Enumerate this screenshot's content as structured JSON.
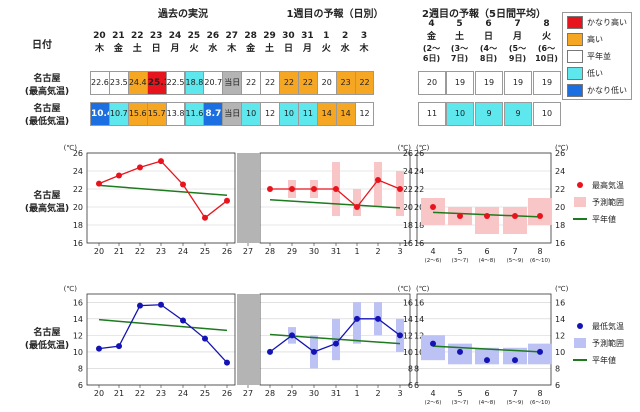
{
  "table": {
    "section_past": "過去の実況",
    "section_week1": "1週目の予報（日別）",
    "section_week2": "2週目の予報（5日間平均）",
    "date_label": "日付",
    "days": [
      {
        "d": "20",
        "w": "木"
      },
      {
        "d": "21",
        "w": "金"
      },
      {
        "d": "22",
        "w": "土"
      },
      {
        "d": "23",
        "w": "日"
      },
      {
        "d": "24",
        "w": "月"
      },
      {
        "d": "25",
        "w": "火"
      },
      {
        "d": "26",
        "w": "水"
      },
      {
        "d": "27",
        "w": "木"
      },
      {
        "d": "28",
        "w": "金"
      },
      {
        "d": "29",
        "w": "土"
      },
      {
        "d": "30",
        "w": "日"
      },
      {
        "d": "31",
        "w": "月"
      },
      {
        "d": "1",
        "w": "火"
      },
      {
        "d": "2",
        "w": "水"
      },
      {
        "d": "3",
        "w": "木"
      }
    ],
    "weeks": [
      {
        "d": "4",
        "w": "金",
        "r1": "(2〜",
        "r2": "6日)"
      },
      {
        "d": "5",
        "w": "土",
        "r1": "(3〜",
        "r2": "7日)"
      },
      {
        "d": "6",
        "w": "日",
        "r1": "(4〜",
        "r2": "8日)"
      },
      {
        "d": "7",
        "w": "月",
        "r1": "(5〜",
        "r2": "9日)"
      },
      {
        "d": "8",
        "w": "火",
        "r1": "(6〜",
        "r2": "10日)"
      }
    ],
    "row_high": {
      "line1": "名古屋",
      "line2": "(最高気温)"
    },
    "row_low": {
      "line1": "名古屋",
      "line2": "(最低気温)"
    },
    "high_cells": [
      {
        "v": "22.6",
        "c": "#ffffff",
        "b": false
      },
      {
        "v": "23.5",
        "c": "#ffffff",
        "b": false
      },
      {
        "v": "24.4",
        "c": "#f5a623",
        "b": false
      },
      {
        "v": "25.1",
        "c": "#e8141d",
        "b": true
      },
      {
        "v": "22.5",
        "c": "#ffffff",
        "b": false
      },
      {
        "v": "18.8",
        "c": "#5ee8ee",
        "b": false
      },
      {
        "v": "20.7",
        "c": "#ffffff",
        "b": false
      },
      {
        "v": "当日",
        "c": "#b4b4b4",
        "b": false
      },
      {
        "v": "22",
        "c": "#ffffff",
        "b": false
      },
      {
        "v": "22",
        "c": "#ffffff",
        "b": false
      },
      {
        "v": "22",
        "c": "#f5a623",
        "b": false
      },
      {
        "v": "22",
        "c": "#f5a623",
        "b": false
      },
      {
        "v": "20",
        "c": "#ffffff",
        "b": false
      },
      {
        "v": "23",
        "c": "#f5a623",
        "b": false
      },
      {
        "v": "22",
        "c": "#f5a623",
        "b": false
      }
    ],
    "low_cells": [
      {
        "v": "10.4",
        "c": "#1b6fe0",
        "b": true
      },
      {
        "v": "10.7",
        "c": "#5ee8ee",
        "b": false
      },
      {
        "v": "15.6",
        "c": "#f5a623",
        "b": false
      },
      {
        "v": "15.7",
        "c": "#f5a623",
        "b": false
      },
      {
        "v": "13.8",
        "c": "#ffffff",
        "b": false
      },
      {
        "v": "11.6",
        "c": "#5ee8ee",
        "b": false
      },
      {
        "v": "8.7",
        "c": "#1b6fe0",
        "b": true
      },
      {
        "v": "当日",
        "c": "#b4b4b4",
        "b": false
      },
      {
        "v": "10",
        "c": "#5ee8ee",
        "b": false
      },
      {
        "v": "12",
        "c": "#ffffff",
        "b": false
      },
      {
        "v": "10",
        "c": "#5ee8ee",
        "b": false
      },
      {
        "v": "11",
        "c": "#5ee8ee",
        "b": false
      },
      {
        "v": "14",
        "c": "#f5a623",
        "b": false
      },
      {
        "v": "14",
        "c": "#f5a623",
        "b": false
      },
      {
        "v": "12",
        "c": "#ffffff",
        "b": false
      }
    ],
    "high_week2": [
      {
        "v": "20",
        "c": "#ffffff"
      },
      {
        "v": "19",
        "c": "#ffffff"
      },
      {
        "v": "19",
        "c": "#ffffff"
      },
      {
        "v": "19",
        "c": "#ffffff"
      },
      {
        "v": "19",
        "c": "#ffffff"
      }
    ],
    "low_week2": [
      {
        "v": "11",
        "c": "#ffffff"
      },
      {
        "v": "10",
        "c": "#5ee8ee"
      },
      {
        "v": "9",
        "c": "#5ee8ee"
      },
      {
        "v": "9",
        "c": "#5ee8ee"
      },
      {
        "v": "10",
        "c": "#ffffff"
      }
    ]
  },
  "legend_table": {
    "items": [
      {
        "label": "かなり高い",
        "color": "#e8141d"
      },
      {
        "label": "高い",
        "color": "#f5a623"
      },
      {
        "label": "平年並",
        "color": "#ffffff"
      },
      {
        "label": "低い",
        "color": "#5ee8ee"
      },
      {
        "label": "かなり低い",
        "color": "#1b6fe0"
      }
    ]
  },
  "colors": {
    "high_line": "#e8141d",
    "low_line": "#1414b4",
    "normal_line": "#1e7a1e",
    "high_range": "#f8c6c6",
    "low_range": "#bcc2f4",
    "today_bar": "#b4b4b4"
  },
  "chart_data": [
    {
      "type": "line",
      "row_label": {
        "line1": "名古屋",
        "line2": "(最高気温)"
      },
      "unit": "(℃)",
      "ylim": [
        16,
        26
      ],
      "yticks": [
        16,
        18,
        20,
        22,
        24,
        26
      ],
      "x_daily": [
        "20",
        "21",
        "22",
        "23",
        "24",
        "25",
        "26",
        "27",
        "28",
        "29",
        "30",
        "31",
        "1",
        "2",
        "3"
      ],
      "x_week2": [
        "4",
        "5",
        "6",
        "7",
        "8"
      ],
      "x_week2_sub": [
        "(2〜6)",
        "(3〜7)",
        "(4〜8)",
        "(5〜9)",
        "(6〜10)"
      ],
      "today_index": 7,
      "observed": {
        "x": [
          0,
          1,
          2,
          3,
          4,
          5,
          6
        ],
        "values": [
          22.6,
          23.5,
          24.4,
          25.1,
          22.5,
          18.8,
          20.7
        ]
      },
      "observed_normal": {
        "x": [
          0,
          6
        ],
        "values": [
          22.4,
          21.3
        ]
      },
      "forecast": {
        "x": [
          8,
          9,
          10,
          11,
          12,
          13,
          14
        ],
        "values": [
          22,
          22,
          22,
          22,
          20,
          23,
          22
        ]
      },
      "forecast_range": [
        {
          "x": 8,
          "lo": null,
          "hi": null
        },
        {
          "x": 9,
          "lo": 21,
          "hi": 23
        },
        {
          "x": 10,
          "lo": 21,
          "hi": 23
        },
        {
          "x": 11,
          "lo": 19,
          "hi": 25
        },
        {
          "x": 12,
          "lo": 19,
          "hi": 22
        },
        {
          "x": 13,
          "lo": 20,
          "hi": 25
        },
        {
          "x": 14,
          "lo": 19,
          "hi": 24
        }
      ],
      "forecast_normal": {
        "x": [
          8,
          14
        ],
        "values": [
          20.8,
          19.9
        ]
      },
      "week2": {
        "values": [
          20,
          19,
          19,
          19,
          19
        ],
        "range": [
          [
            18,
            21
          ],
          [
            18,
            20
          ],
          [
            17,
            20
          ],
          [
            17,
            20
          ],
          [
            18,
            21
          ]
        ],
        "normal": [
          19.4,
          18.9
        ]
      },
      "legend": [
        {
          "label": "最高気温",
          "kind": "dot"
        },
        {
          "label": "予測範囲",
          "kind": "box"
        },
        {
          "label": "平年値",
          "kind": "line"
        }
      ]
    },
    {
      "type": "line",
      "row_label": {
        "line1": "名古屋",
        "line2": "(最低気温)"
      },
      "unit": "(℃)",
      "ylim": [
        6,
        17
      ],
      "yticks": [
        6,
        8,
        10,
        12,
        14,
        16
      ],
      "x_daily": [
        "20",
        "21",
        "22",
        "23",
        "24",
        "25",
        "26",
        "27",
        "28",
        "29",
        "30",
        "31",
        "1",
        "2",
        "3"
      ],
      "x_week2": [
        "4",
        "5",
        "6",
        "7",
        "8"
      ],
      "x_week2_sub": [
        "(2〜6)",
        "(3〜7)",
        "(4〜8)",
        "(5〜9)",
        "(6〜10)"
      ],
      "today_index": 7,
      "observed": {
        "x": [
          0,
          1,
          2,
          3,
          4,
          5,
          6
        ],
        "values": [
          10.4,
          10.7,
          15.6,
          15.7,
          13.8,
          11.6,
          8.7
        ]
      },
      "observed_normal": {
        "x": [
          0,
          6
        ],
        "values": [
          13.9,
          12.6
        ]
      },
      "forecast": {
        "x": [
          8,
          9,
          10,
          11,
          12,
          13,
          14
        ],
        "values": [
          10,
          12,
          10,
          11,
          14,
          14,
          12
        ]
      },
      "forecast_range": [
        {
          "x": 8,
          "lo": null,
          "hi": null
        },
        {
          "x": 9,
          "lo": 11,
          "hi": 13
        },
        {
          "x": 10,
          "lo": 8,
          "hi": 12
        },
        {
          "x": 11,
          "lo": 9,
          "hi": 14
        },
        {
          "x": 12,
          "lo": 11,
          "hi": 16
        },
        {
          "x": 13,
          "lo": 12,
          "hi": 16
        },
        {
          "x": 14,
          "lo": 10,
          "hi": 14
        }
      ],
      "forecast_normal": {
        "x": [
          8,
          14
        ],
        "values": [
          12.1,
          11
        ]
      },
      "week2": {
        "values": [
          11,
          10,
          9,
          9,
          10
        ],
        "range": [
          [
            9,
            12
          ],
          [
            8.5,
            11
          ],
          [
            8.5,
            10.5
          ],
          [
            8.5,
            10.5
          ],
          [
            8.5,
            11
          ]
        ],
        "normal": [
          10.7,
          10
        ]
      },
      "legend": [
        {
          "label": "最低気温",
          "kind": "dot"
        },
        {
          "label": "予測範囲",
          "kind": "box"
        },
        {
          "label": "平年値",
          "kind": "line"
        }
      ]
    }
  ]
}
